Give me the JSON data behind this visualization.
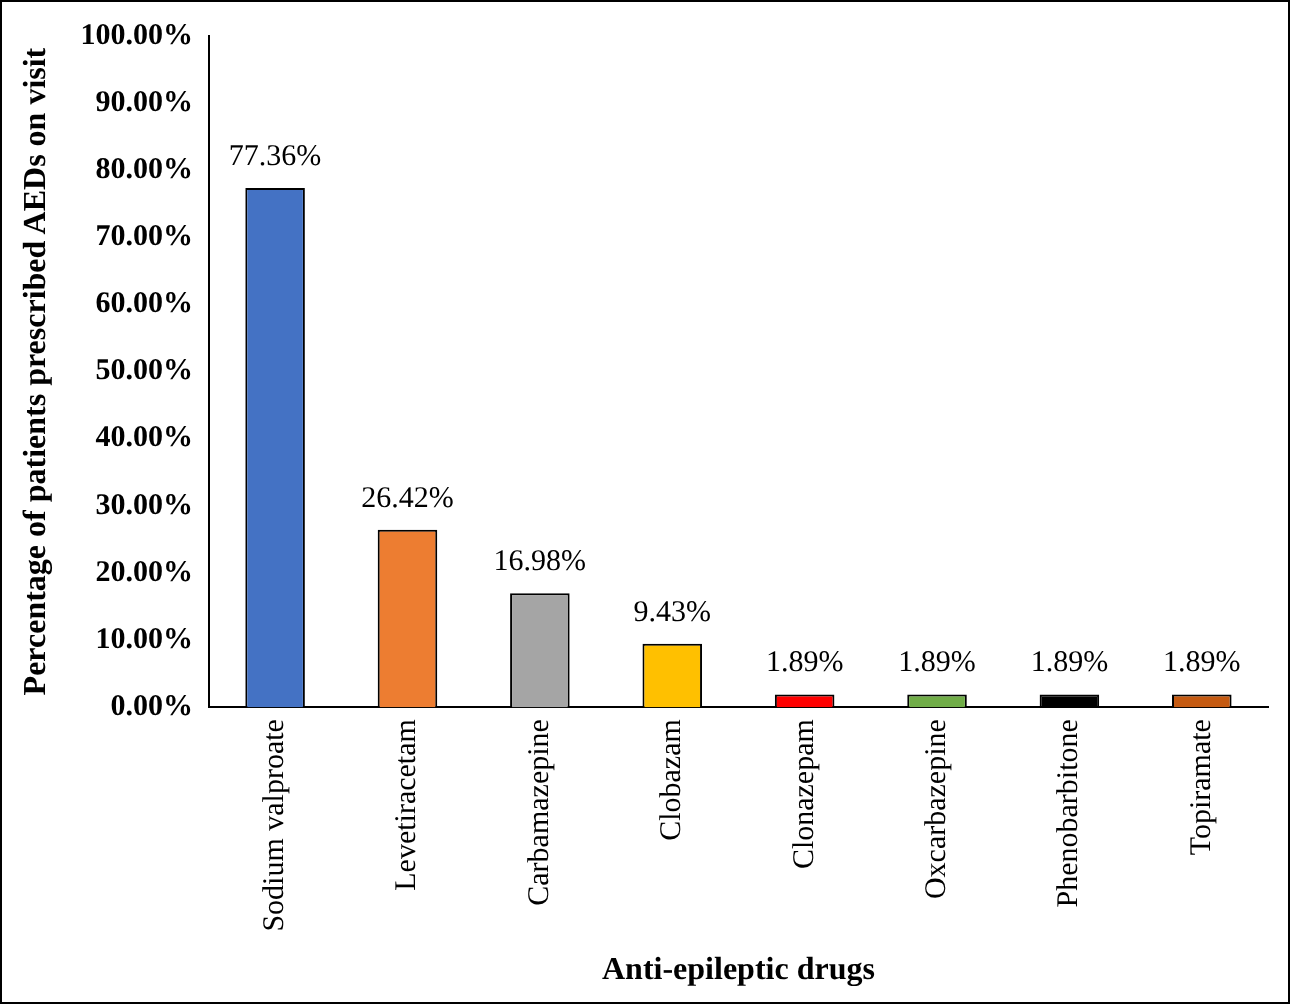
{
  "chart_data": {
    "type": "bar",
    "xlabel": "Anti-epileptic drugs",
    "ylabel": "Percentage of patients prescribed AEDs on visit",
    "categories": [
      "Sodium valproate",
      "Levetiracetam",
      "Carbamazepine",
      "Clobazam",
      "Clonazepam",
      "Oxcarbazepine",
      "Phenobarbitone",
      "Topiramate"
    ],
    "values": [
      77.36,
      26.42,
      16.98,
      9.43,
      1.89,
      1.89,
      1.89,
      1.89
    ],
    "colors": [
      "#4472c4",
      "#ed7d31",
      "#a5a5a5",
      "#ffc000",
      "#ff0000",
      "#70ad47",
      "#000000",
      "#c55a11"
    ],
    "value_labels": [
      "77.36%",
      "26.42%",
      "16.98%",
      "9.43%",
      "1.89%",
      "1.89%",
      "1.89%",
      "1.89%"
    ],
    "ylim": [
      0,
      100
    ],
    "yticks": [
      {
        "value": 0,
        "label": "0.00%"
      },
      {
        "value": 10,
        "label": "10.00%"
      },
      {
        "value": 20,
        "label": "20.00%"
      },
      {
        "value": 30,
        "label": "30.00%"
      },
      {
        "value": 40,
        "label": "40.00%"
      },
      {
        "value": 50,
        "label": "50.00%"
      },
      {
        "value": 60,
        "label": "60.00%"
      },
      {
        "value": 70,
        "label": "70.00%"
      },
      {
        "value": 80,
        "label": "80.00%"
      },
      {
        "value": 90,
        "label": "90.00%"
      },
      {
        "value": 100,
        "label": "100.00%"
      }
    ],
    "grid": false,
    "legend": false
  }
}
